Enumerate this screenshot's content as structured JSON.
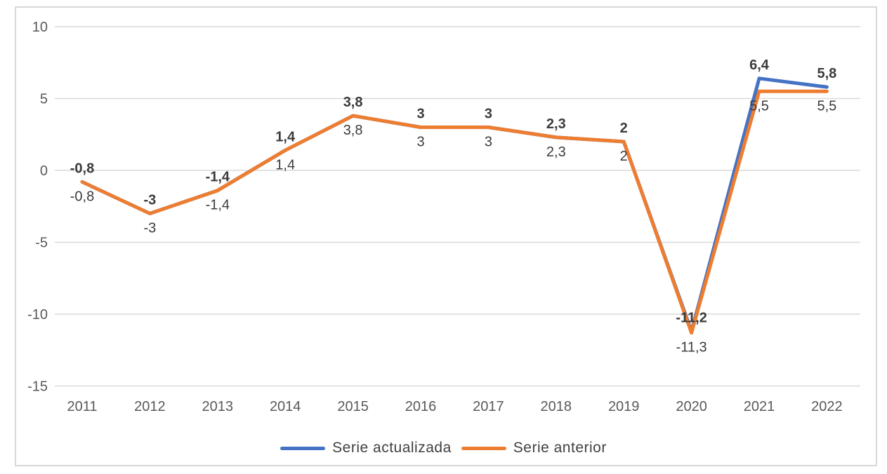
{
  "chart_data": {
    "type": "line",
    "categories": [
      "2011",
      "2012",
      "2013",
      "2014",
      "2015",
      "2016",
      "2017",
      "2018",
      "2019",
      "2020",
      "2021",
      "2022"
    ],
    "series": [
      {
        "name": "Serie actualizada",
        "color": "#4472C4",
        "values": [
          -0.8,
          -3,
          -1.4,
          1.4,
          3.8,
          3,
          3,
          2.3,
          2,
          -11.2,
          6.4,
          5.8
        ],
        "labels": [
          "-0,8",
          "-3",
          "-1,4",
          "1,4",
          "3,8",
          "3",
          "3",
          "2,3",
          "2",
          "-11,2",
          "6,4",
          "5,8"
        ],
        "label_style": "bold-above"
      },
      {
        "name": "Serie anterior",
        "color": "#ED7D31",
        "values": [
          -0.8,
          -3,
          -1.4,
          1.4,
          3.8,
          3,
          3,
          2.3,
          2,
          -11.3,
          5.5,
          5.5
        ],
        "labels": [
          "-0,8",
          "-3",
          "-1,4",
          "1,4",
          "3,8",
          "3",
          "3",
          "2,3",
          "2",
          "-11,3",
          "5,5",
          "5,5"
        ],
        "label_style": "regular-below"
      }
    ],
    "title": "",
    "xlabel": "",
    "ylabel": "",
    "ylim": [
      -15,
      10
    ],
    "yticks": [
      10,
      5,
      0,
      -5,
      -10,
      -15
    ],
    "grid": true,
    "legend_position": "bottom",
    "colors": {
      "gridline": "#D9D9D9",
      "axis_text": "#595959",
      "data_label": "#3B3B3B",
      "frame_border": "#D8D8D8"
    }
  }
}
